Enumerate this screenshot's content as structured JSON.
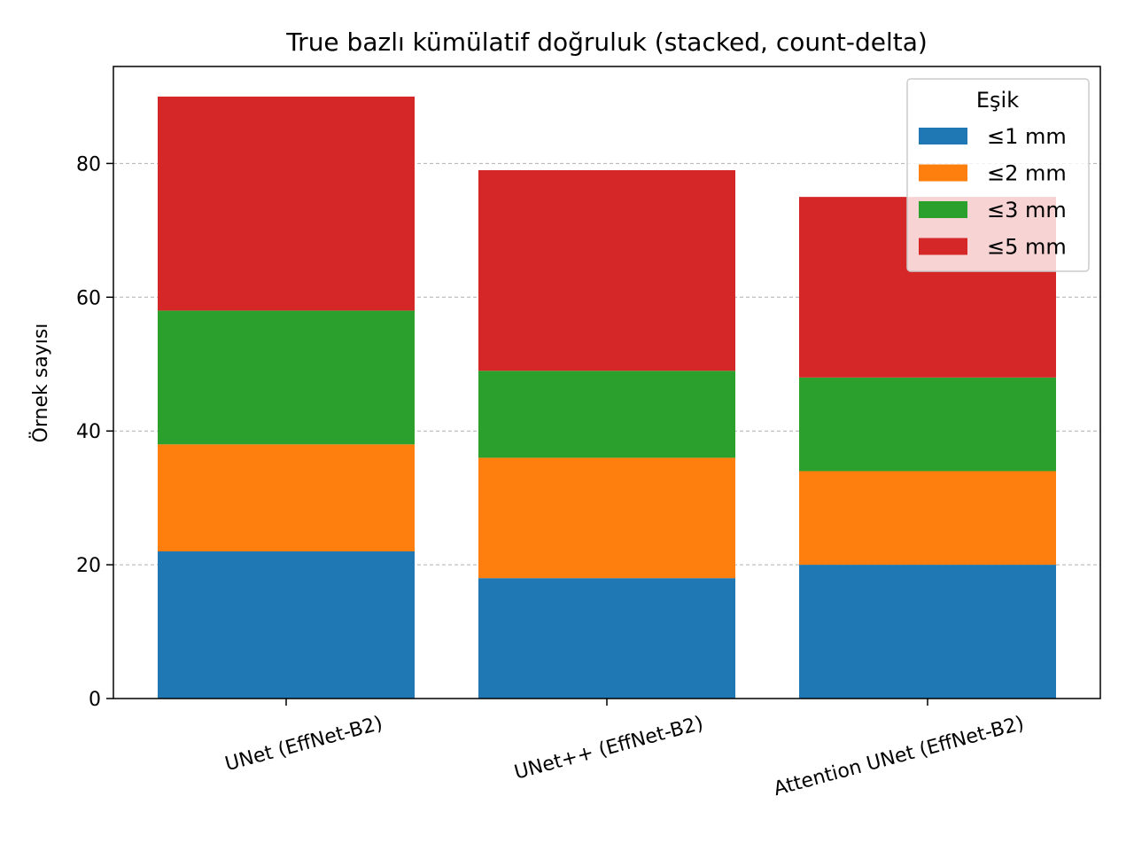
{
  "chart_data": {
    "type": "bar",
    "stacked": true,
    "title": "True bazlı kümülatif doğruluk (stacked, count-delta)",
    "xlabel": "",
    "ylabel": "Örnek sayısı",
    "ylim": [
      0,
      94.5
    ],
    "yticks": [
      0,
      20,
      40,
      60,
      80
    ],
    "grid": true,
    "legend_title": "Eşik",
    "legend_position": "top-right",
    "categories": [
      "UNet (EffNet-B2)",
      "UNet++ (EffNet-B2)",
      "Attention UNet (EffNet-B2)"
    ],
    "series": [
      {
        "name": "≤1 mm",
        "color": "#1f77b4",
        "values": [
          22,
          18,
          20
        ]
      },
      {
        "name": "≤2 mm",
        "color": "#ff7f0e",
        "values": [
          16,
          18,
          14
        ]
      },
      {
        "name": "≤3 mm",
        "color": "#2ca02c",
        "values": [
          20,
          13,
          14
        ]
      },
      {
        "name": "≤5 mm",
        "color": "#d62728",
        "values": [
          32,
          30,
          27
        ]
      }
    ]
  }
}
